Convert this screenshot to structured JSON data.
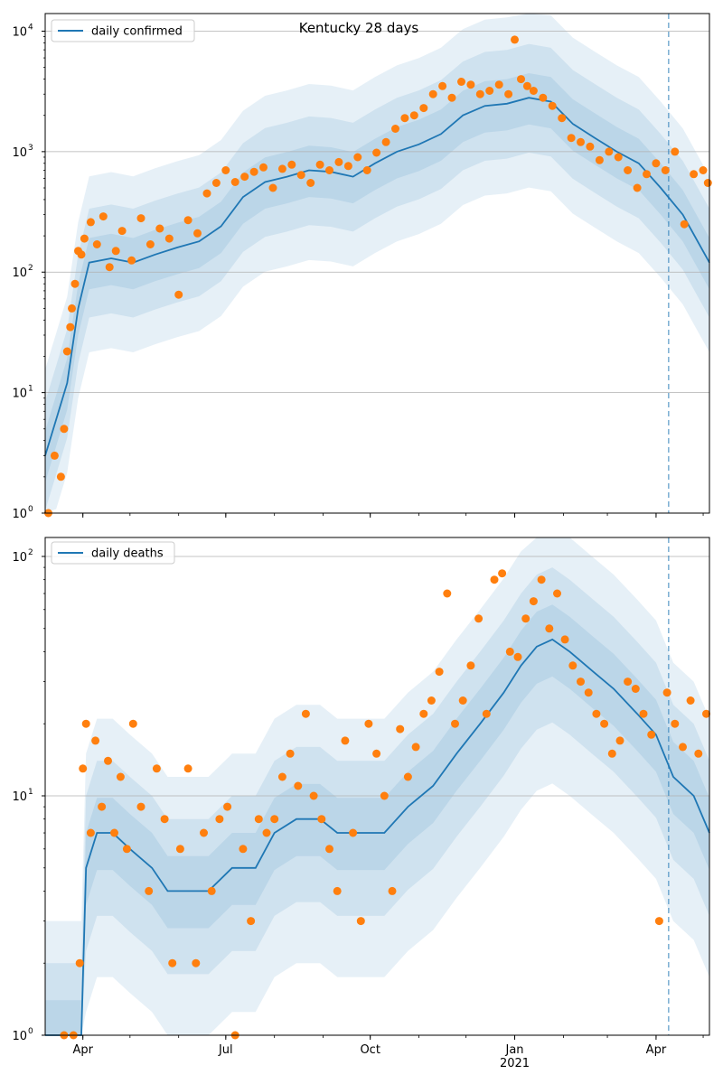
{
  "chart_data": [
    {
      "type": "line",
      "panel": "top",
      "title": "Kentucky 28 days",
      "ylabel": "",
      "yscale": "log",
      "ylim": [
        1,
        14000
      ],
      "xlim": [
        "2020-03-08",
        "2021-05-05"
      ],
      "y_ticks": [
        {
          "value": 1,
          "label": "10",
          "exp": "0"
        },
        {
          "value": 10,
          "label": "10",
          "exp": "1"
        },
        {
          "value": 100,
          "label": "10",
          "exp": "2"
        },
        {
          "value": 1000,
          "label": "10",
          "exp": "3"
        },
        {
          "value": 10000,
          "label": "10",
          "exp": "4"
        }
      ],
      "grid": "y",
      "legend": {
        "placement": "top-left",
        "entries": [
          "daily confirmed"
        ]
      },
      "forecast_start": "2021-04-09",
      "model_line": {
        "name": "daily confirmed",
        "color": "#1f77b4",
        "x": [
          "2020-03-08",
          "2020-03-15",
          "2020-03-22",
          "2020-03-29",
          "2020-04-05",
          "2020-04-19",
          "2020-05-03",
          "2020-05-17",
          "2020-05-31",
          "2020-06-14",
          "2020-06-28",
          "2020-07-12",
          "2020-07-26",
          "2020-08-09",
          "2020-08-23",
          "2020-09-06",
          "2020-09-20",
          "2020-10-04",
          "2020-10-18",
          "2020-11-01",
          "2020-11-15",
          "2020-11-29",
          "2020-12-13",
          "2020-12-27",
          "2021-01-10",
          "2021-01-24",
          "2021-02-07",
          "2021-02-21",
          "2021-03-07",
          "2021-03-21",
          "2021-04-04",
          "2021-04-18",
          "2021-05-05"
        ],
        "y": [
          3,
          6,
          12,
          50,
          120,
          130,
          120,
          140,
          160,
          180,
          240,
          420,
          560,
          620,
          700,
          680,
          620,
          800,
          1000,
          1150,
          1400,
          2000,
          2400,
          2500,
          2800,
          2600,
          1700,
          1300,
          1000,
          800,
          500,
          300,
          120
        ]
      },
      "bands_mult": [
        [
          0.6,
          1.6
        ],
        [
          0.35,
          2.8
        ],
        [
          0.18,
          5.2
        ]
      ],
      "observed_color": "#ff7f0e",
      "observed": {
        "x": [
          "2020-03-10",
          "2020-03-14",
          "2020-03-18",
          "2020-03-20",
          "2020-03-22",
          "2020-03-24",
          "2020-03-25",
          "2020-03-27",
          "2020-03-29",
          "2020-03-31",
          "2020-04-02",
          "2020-04-06",
          "2020-04-10",
          "2020-04-14",
          "2020-04-18",
          "2020-04-22",
          "2020-04-26",
          "2020-05-02",
          "2020-05-08",
          "2020-05-14",
          "2020-05-20",
          "2020-05-26",
          "2020-06-01",
          "2020-06-07",
          "2020-06-13",
          "2020-06-19",
          "2020-06-25",
          "2020-07-01",
          "2020-07-07",
          "2020-07-13",
          "2020-07-19",
          "2020-07-25",
          "2020-07-31",
          "2020-08-06",
          "2020-08-12",
          "2020-08-18",
          "2020-08-24",
          "2020-08-30",
          "2020-09-05",
          "2020-09-11",
          "2020-09-17",
          "2020-09-23",
          "2020-09-29",
          "2020-10-05",
          "2020-10-11",
          "2020-10-17",
          "2020-10-23",
          "2020-10-29",
          "2020-11-04",
          "2020-11-10",
          "2020-11-16",
          "2020-11-22",
          "2020-11-28",
          "2020-12-04",
          "2020-12-10",
          "2020-12-16",
          "2020-12-22",
          "2020-12-28",
          "2021-01-01",
          "2021-01-05",
          "2021-01-09",
          "2021-01-13",
          "2021-01-19",
          "2021-01-25",
          "2021-01-31",
          "2021-02-06",
          "2021-02-12",
          "2021-02-18",
          "2021-02-24",
          "2021-03-02",
          "2021-03-08",
          "2021-03-14",
          "2021-03-20",
          "2021-03-26",
          "2021-04-01",
          "2021-04-07",
          "2021-04-13",
          "2021-04-19",
          "2021-04-25",
          "2021-05-01",
          "2021-05-04"
        ],
        "y": [
          1,
          3,
          2,
          5,
          22,
          35,
          50,
          80,
          150,
          140,
          190,
          260,
          170,
          290,
          110,
          150,
          220,
          125,
          280,
          170,
          230,
          190,
          65,
          270,
          210,
          450,
          550,
          700,
          560,
          620,
          680,
          740,
          500,
          720,
          780,
          640,
          550,
          780,
          700,
          820,
          760,
          900,
          700,
          980,
          1200,
          1550,
          1900,
          2000,
          2300,
          3000,
          3500,
          2800,
          3800,
          3600,
          3000,
          3200,
          3600,
          3000,
          8500,
          4000,
          3500,
          3200,
          2800,
          2400,
          1900,
          1300,
          1200,
          1100,
          850,
          1000,
          900,
          700,
          500,
          650,
          800,
          700,
          1000,
          250,
          650,
          700,
          550
        ]
      }
    },
    {
      "type": "line",
      "panel": "bottom",
      "title": "",
      "ylabel": "",
      "yscale": "log",
      "ylim": [
        1,
        120
      ],
      "xlim": [
        "2020-03-08",
        "2021-05-05"
      ],
      "y_ticks": [
        {
          "value": 1,
          "label": "10",
          "exp": "0"
        },
        {
          "value": 10,
          "label": "10",
          "exp": "1"
        },
        {
          "value": 100,
          "label": "10",
          "exp": "2"
        }
      ],
      "x_ticks": [
        {
          "date": "2020-04-01",
          "label": "Apr",
          "sub": ""
        },
        {
          "date": "2020-07-01",
          "label": "Jul",
          "sub": ""
        },
        {
          "date": "2020-10-01",
          "label": "Oct",
          "sub": ""
        },
        {
          "date": "2021-01-01",
          "label": "Jan",
          "sub": "2021"
        },
        {
          "date": "2021-04-01",
          "label": "Apr",
          "sub": ""
        }
      ],
      "grid": "y",
      "legend": {
        "placement": "top-left",
        "entries": [
          "daily deaths"
        ]
      },
      "forecast_start": "2021-04-09",
      "model_line": {
        "name": "daily deaths",
        "color": "#1f77b4",
        "x": [
          "2020-03-08",
          "2020-03-31",
          "2020-04-03",
          "2020-04-10",
          "2020-04-20",
          "2020-05-01",
          "2020-05-15",
          "2020-05-25",
          "2020-06-05",
          "2020-06-20",
          "2020-07-05",
          "2020-07-20",
          "2020-08-01",
          "2020-08-15",
          "2020-08-30",
          "2020-09-10",
          "2020-09-25",
          "2020-10-10",
          "2020-10-25",
          "2020-11-10",
          "2020-11-25",
          "2020-12-10",
          "2020-12-25",
          "2021-01-05",
          "2021-01-15",
          "2021-01-25",
          "2021-02-05",
          "2021-02-20",
          "2021-03-05",
          "2021-03-20",
          "2021-04-01",
          "2021-04-12",
          "2021-04-25",
          "2021-05-05"
        ],
        "y": [
          1,
          1,
          5,
          7,
          7,
          6,
          5,
          4,
          4,
          4,
          5,
          5,
          7,
          8,
          8,
          7,
          7,
          7,
          9,
          11,
          15,
          20,
          27,
          35,
          42,
          45,
          40,
          33,
          28,
          22,
          18,
          12,
          10,
          7
        ]
      },
      "bands_mult": [
        [
          0.7,
          1.4
        ],
        [
          0.45,
          2.0
        ],
        [
          0.25,
          3.0
        ]
      ],
      "observed_color": "#ff7f0e",
      "observed": {
        "x": [
          "2020-03-20",
          "2020-03-26",
          "2020-03-30",
          "2020-04-01",
          "2020-04-03",
          "2020-04-06",
          "2020-04-09",
          "2020-04-13",
          "2020-04-17",
          "2020-04-21",
          "2020-04-25",
          "2020-04-29",
          "2020-05-03",
          "2020-05-08",
          "2020-05-13",
          "2020-05-18",
          "2020-05-23",
          "2020-05-28",
          "2020-06-02",
          "2020-06-07",
          "2020-06-12",
          "2020-06-17",
          "2020-06-22",
          "2020-06-27",
          "2020-07-02",
          "2020-07-07",
          "2020-07-12",
          "2020-07-17",
          "2020-07-22",
          "2020-07-27",
          "2020-08-01",
          "2020-08-06",
          "2020-08-11",
          "2020-08-16",
          "2020-08-21",
          "2020-08-26",
          "2020-08-31",
          "2020-09-05",
          "2020-09-10",
          "2020-09-15",
          "2020-09-20",
          "2020-09-25",
          "2020-09-30",
          "2020-10-05",
          "2020-10-10",
          "2020-10-15",
          "2020-10-20",
          "2020-10-25",
          "2020-10-30",
          "2020-11-04",
          "2020-11-09",
          "2020-11-14",
          "2020-11-19",
          "2020-11-24",
          "2020-11-29",
          "2020-12-04",
          "2020-12-09",
          "2020-12-14",
          "2020-12-19",
          "2020-12-24",
          "2020-12-29",
          "2021-01-03",
          "2021-01-08",
          "2021-01-13",
          "2021-01-18",
          "2021-01-23",
          "2021-01-28",
          "2021-02-02",
          "2021-02-07",
          "2021-02-12",
          "2021-02-17",
          "2021-02-22",
          "2021-02-27",
          "2021-03-04",
          "2021-03-09",
          "2021-03-14",
          "2021-03-19",
          "2021-03-24",
          "2021-03-29",
          "2021-04-03",
          "2021-04-08",
          "2021-04-13",
          "2021-04-18",
          "2021-04-23",
          "2021-04-28",
          "2021-05-03"
        ],
        "y": [
          1,
          1,
          2,
          13,
          20,
          7,
          17,
          9,
          14,
          7,
          12,
          6,
          20,
          9,
          4,
          13,
          8,
          2,
          6,
          13,
          2,
          7,
          4,
          8,
          9,
          1,
          6,
          3,
          8,
          7,
          8,
          12,
          15,
          11,
          22,
          10,
          8,
          6,
          4,
          17,
          7,
          3,
          20,
          15,
          10,
          4,
          19,
          12,
          16,
          22,
          25,
          33,
          70,
          20,
          25,
          35,
          55,
          22,
          80,
          85,
          40,
          38,
          55,
          65,
          80,
          50,
          70,
          45,
          35,
          30,
          27,
          22,
          20,
          15,
          17,
          30,
          28,
          22,
          18,
          3,
          27,
          20,
          16,
          25,
          15,
          22
        ]
      }
    }
  ]
}
